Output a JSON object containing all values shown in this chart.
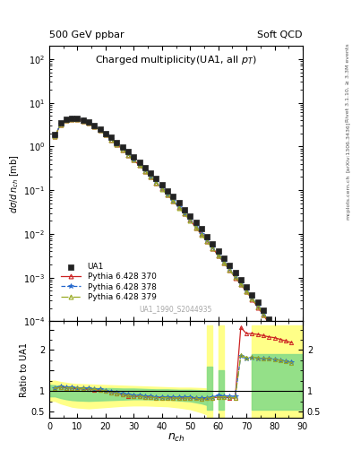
{
  "title_main": "500 GeV ppbar",
  "title_right": "Soft QCD",
  "plot_title": "Charged multiplicity(UA1, all p_{T})",
  "ylabel_main": "dσ/d n_{ch} [mb]",
  "ylabel_ratio": "Ratio to UA1",
  "xlabel": "n_{ch}",
  "watermark": "UA1_1990_S2044935",
  "right_label": "Rivet 3.1.10, ≥ 3.3M events",
  "arxiv_label": "[arXiv:1306.3436]",
  "mcplots_label": "mcplots.cern.ch",
  "ua1_nch": [
    2,
    4,
    6,
    8,
    10,
    12,
    14,
    16,
    18,
    20,
    22,
    24,
    26,
    28,
    30,
    32,
    34,
    36,
    38,
    40,
    42,
    44,
    46,
    48,
    50,
    52,
    54,
    56,
    58,
    60,
    62,
    64,
    66,
    68,
    70,
    72,
    74,
    76,
    78,
    80,
    82,
    84,
    86
  ],
  "ua1_vals": [
    1.9,
    3.5,
    4.2,
    4.5,
    4.4,
    4.1,
    3.6,
    3.0,
    2.5,
    2.0,
    1.6,
    1.25,
    0.98,
    0.76,
    0.58,
    0.44,
    0.33,
    0.25,
    0.185,
    0.135,
    0.098,
    0.071,
    0.051,
    0.036,
    0.026,
    0.018,
    0.013,
    0.0088,
    0.006,
    0.0041,
    0.0028,
    0.0019,
    0.0013,
    0.0009,
    0.00061,
    0.00041,
    0.00027,
    0.00018,
    0.00011,
    7e-05,
    4.3e-05,
    2.5e-05,
    1.3e-05
  ],
  "ua1_color": "#222222",
  "p370_nch": [
    2,
    4,
    6,
    8,
    10,
    12,
    14,
    16,
    18,
    20,
    22,
    24,
    26,
    28,
    30,
    32,
    34,
    36,
    38,
    40,
    42,
    44,
    46,
    48,
    50,
    52,
    54,
    56,
    58,
    60,
    62,
    64,
    66,
    68,
    70,
    72,
    74,
    76,
    78,
    80,
    82,
    84,
    86
  ],
  "p370_vals": [
    1.7,
    3.2,
    4.0,
    4.3,
    4.2,
    3.9,
    3.4,
    2.85,
    2.35,
    1.85,
    1.45,
    1.12,
    0.86,
    0.65,
    0.49,
    0.37,
    0.275,
    0.203,
    0.149,
    0.109,
    0.079,
    0.057,
    0.041,
    0.029,
    0.021,
    0.014,
    0.0098,
    0.0068,
    0.0047,
    0.0032,
    0.0022,
    0.0015,
    0.001,
    0.0007,
    0.00048,
    0.00032,
    0.00021,
    0.00014,
    9e-05,
    6e-05,
    4e-05,
    2.5e-05,
    1.5e-05
  ],
  "p370_color": "#cc2222",
  "p370_label": "Pythia 6.428 370",
  "p378_nch": [
    2,
    4,
    6,
    8,
    10,
    12,
    14,
    16,
    18,
    20,
    22,
    24,
    26,
    28,
    30,
    32,
    34,
    36,
    38,
    40,
    42,
    44,
    46,
    48,
    50,
    52,
    54,
    56,
    58,
    60,
    62,
    64,
    66,
    68,
    70,
    72,
    74,
    76,
    78,
    80,
    82,
    84,
    86
  ],
  "p378_vals": [
    1.75,
    3.25,
    4.05,
    4.32,
    4.22,
    3.92,
    3.42,
    2.87,
    2.37,
    1.87,
    1.47,
    1.13,
    0.87,
    0.66,
    0.5,
    0.375,
    0.28,
    0.206,
    0.151,
    0.11,
    0.08,
    0.058,
    0.042,
    0.03,
    0.021,
    0.015,
    0.01,
    0.007,
    0.0048,
    0.0033,
    0.00225,
    0.00155,
    0.00106,
    0.00073,
    0.0005,
    0.00034,
    0.00023,
    0.00015,
    0.0001,
    6.8e-05,
    4.5e-05,
    3e-05,
    1.9e-05
  ],
  "p378_color": "#2266cc",
  "p378_label": "Pythia 6.428 378",
  "p379_nch": [
    2,
    4,
    6,
    8,
    10,
    12,
    14,
    16,
    18,
    20,
    22,
    24,
    26,
    28,
    30,
    32,
    34,
    36,
    38,
    40,
    42,
    44,
    46,
    48,
    50,
    52,
    54,
    56,
    58,
    60,
    62,
    64,
    66,
    68,
    70,
    72,
    74,
    76,
    78,
    80,
    82,
    84,
    86
  ],
  "p379_vals": [
    1.72,
    3.22,
    4.02,
    4.3,
    4.2,
    3.9,
    3.4,
    2.85,
    2.35,
    1.85,
    1.45,
    1.12,
    0.86,
    0.65,
    0.49,
    0.37,
    0.275,
    0.202,
    0.148,
    0.108,
    0.078,
    0.056,
    0.04,
    0.029,
    0.02,
    0.014,
    0.0097,
    0.0067,
    0.0046,
    0.0032,
    0.0022,
    0.0015,
    0.00103,
    0.00071,
    0.00049,
    0.00033,
    0.00022,
    0.000145,
    9.7e-05,
    6.5e-05,
    4.3e-05,
    2.8e-05,
    1.75e-05
  ],
  "p379_color": "#99aa22",
  "p379_label": "Pythia 6.428 379",
  "ratio_nch": [
    2,
    4,
    6,
    8,
    10,
    12,
    14,
    16,
    18,
    20,
    22,
    24,
    26,
    28,
    30,
    32,
    34,
    36,
    38,
    40,
    42,
    44,
    46,
    48,
    50,
    52,
    54,
    56,
    58,
    60,
    62,
    64,
    66,
    68,
    70,
    72,
    74,
    76,
    78,
    80,
    82,
    84,
    86
  ],
  "r370": [
    1.05,
    1.1,
    1.08,
    1.07,
    1.06,
    1.05,
    1.04,
    1.03,
    1.02,
    1.0,
    0.97,
    0.94,
    0.91,
    0.88,
    0.87,
    0.87,
    0.86,
    0.85,
    0.84,
    0.84,
    0.84,
    0.83,
    0.83,
    0.83,
    0.84,
    0.82,
    0.8,
    0.82,
    0.84,
    0.85,
    0.85,
    0.84,
    0.82,
    2.55,
    2.4,
    2.4,
    2.38,
    2.35,
    2.32,
    2.3,
    2.26,
    2.22,
    2.18
  ],
  "r378": [
    1.08,
    1.12,
    1.1,
    1.09,
    1.08,
    1.07,
    1.06,
    1.05,
    1.04,
    1.01,
    0.98,
    0.95,
    0.93,
    0.91,
    0.9,
    0.89,
    0.88,
    0.87,
    0.86,
    0.86,
    0.86,
    0.85,
    0.85,
    0.85,
    0.85,
    0.83,
    0.82,
    0.84,
    0.86,
    0.89,
    0.88,
    0.87,
    0.87,
    1.85,
    1.8,
    1.82,
    1.8,
    1.79,
    1.78,
    1.77,
    1.75,
    1.72,
    1.7
  ],
  "r379": [
    1.06,
    1.1,
    1.08,
    1.08,
    1.07,
    1.06,
    1.05,
    1.04,
    1.03,
    1.0,
    0.97,
    0.94,
    0.91,
    0.89,
    0.87,
    0.87,
    0.86,
    0.85,
    0.84,
    0.84,
    0.84,
    0.83,
    0.83,
    0.83,
    0.84,
    0.82,
    0.8,
    0.82,
    0.84,
    0.86,
    0.86,
    0.85,
    0.83,
    1.87,
    1.82,
    1.83,
    1.81,
    1.8,
    1.79,
    1.77,
    1.75,
    1.72,
    1.69
  ],
  "ylim_main": [
    0.0001,
    200
  ],
  "xlim": [
    0,
    90
  ],
  "ratio_ylim": [
    0.35,
    2.7
  ]
}
